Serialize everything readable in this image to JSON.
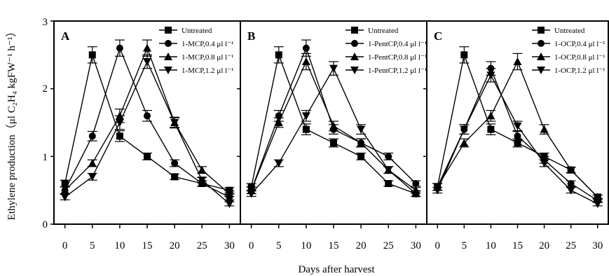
{
  "figure": {
    "ylabel": "Ethylene production（μl C₂H₄ kgFW⁻¹ h⁻¹）",
    "xlabel": "Days after harvest",
    "xticks": [
      "0",
      "5",
      "10",
      "15",
      "20",
      "25",
      "30"
    ],
    "yticks": [
      "0",
      "1",
      "2",
      "3"
    ]
  },
  "chart_data": [
    {
      "type": "line",
      "panel_label": "A",
      "x": [
        0,
        5,
        10,
        15,
        20,
        25,
        30
      ],
      "xlim": [
        -2,
        32
      ],
      "ylim": [
        0,
        3
      ],
      "grid": false,
      "legend_position": "top-right",
      "series": [
        {
          "name": "Untreated",
          "marker": "square",
          "values": [
            0.6,
            2.5,
            1.3,
            1.0,
            0.7,
            0.6,
            0.5
          ],
          "errors": [
            0.05,
            0.12,
            0.08,
            0.05,
            0.04,
            0.04,
            0.04
          ]
        },
        {
          "name": "1-MCP,0.4 μl l⁻¹",
          "marker": "circle",
          "values": [
            0.5,
            1.3,
            2.6,
            1.6,
            0.9,
            0.6,
            0.4
          ],
          "errors": [
            0.05,
            0.07,
            0.12,
            0.08,
            0.05,
            0.04,
            0.04
          ]
        },
        {
          "name": "1-MCP,0.8 μl l⁻¹",
          "marker": "triangle-up",
          "values": [
            0.5,
            0.9,
            1.6,
            2.6,
            1.5,
            0.8,
            0.45
          ],
          "errors": [
            0.05,
            0.05,
            0.1,
            0.12,
            0.08,
            0.05,
            0.04
          ]
        },
        {
          "name": "1-MCP,1.2 μl l⁻¹",
          "marker": "triangle-down",
          "values": [
            0.4,
            0.7,
            1.5,
            2.4,
            1.5,
            0.65,
            0.3
          ],
          "errors": [
            0.04,
            0.05,
            0.1,
            0.1,
            0.07,
            0.04,
            0.03
          ]
        }
      ]
    },
    {
      "type": "line",
      "panel_label": "B",
      "x": [
        0,
        5,
        10,
        15,
        20,
        25,
        30
      ],
      "xlim": [
        -2,
        32
      ],
      "ylim": [
        0,
        3
      ],
      "grid": false,
      "legend_position": "top-right",
      "series": [
        {
          "name": "Untreated",
          "marker": "square",
          "values": [
            0.55,
            2.5,
            1.4,
            1.2,
            1.0,
            0.6,
            0.45
          ],
          "errors": [
            0.05,
            0.12,
            0.08,
            0.06,
            0.05,
            0.04,
            0.04
          ]
        },
        {
          "name": "1-PentCP,0.4 μl l⁻¹",
          "marker": "circle",
          "values": [
            0.5,
            1.6,
            2.6,
            1.4,
            1.2,
            1.0,
            0.6
          ],
          "errors": [
            0.05,
            0.08,
            0.12,
            0.07,
            0.06,
            0.05,
            0.04
          ]
        },
        {
          "name": "1-PentCP,0.8 μl l⁻¹",
          "marker": "triangle-up",
          "values": [
            0.5,
            1.5,
            2.4,
            1.45,
            1.2,
            0.8,
            0.5
          ],
          "errors": [
            0.05,
            0.07,
            0.12,
            0.07,
            0.06,
            0.05,
            0.04
          ]
        },
        {
          "name": "1-PentCP,1.2 μl l⁻¹",
          "marker": "triangle-down",
          "values": [
            0.45,
            0.9,
            1.6,
            2.3,
            1.4,
            0.8,
            0.45
          ],
          "errors": [
            0.04,
            0.05,
            0.08,
            0.1,
            0.07,
            0.05,
            0.04
          ]
        }
      ]
    },
    {
      "type": "line",
      "panel_label": "C",
      "x": [
        0,
        5,
        10,
        15,
        20,
        25,
        30
      ],
      "xlim": [
        -2,
        32
      ],
      "ylim": [
        0,
        3
      ],
      "grid": false,
      "legend_position": "top-right",
      "series": [
        {
          "name": "Untreated",
          "marker": "square",
          "values": [
            0.55,
            2.5,
            1.4,
            1.2,
            1.0,
            0.8,
            0.4
          ],
          "errors": [
            0.05,
            0.12,
            0.08,
            0.06,
            0.05,
            0.04,
            0.03
          ]
        },
        {
          "name": "1-OCP,0.4 μl l⁻¹",
          "marker": "circle",
          "values": [
            0.55,
            1.4,
            2.3,
            1.3,
            0.95,
            0.6,
            0.35
          ],
          "errors": [
            0.05,
            0.07,
            0.1,
            0.07,
            0.05,
            0.04,
            0.03
          ]
        },
        {
          "name": "1-OCP,0.8 μl l⁻¹",
          "marker": "triangle-up",
          "values": [
            0.55,
            1.2,
            1.6,
            2.4,
            1.4,
            0.8,
            0.4
          ],
          "errors": [
            0.05,
            0.06,
            0.08,
            0.12,
            0.07,
            0.04,
            0.03
          ]
        },
        {
          "name": "1-OCP,1.2 μl l⁻¹",
          "marker": "triangle-down",
          "values": [
            0.5,
            1.4,
            2.2,
            1.45,
            0.9,
            0.5,
            0.3
          ],
          "errors": [
            0.04,
            0.07,
            0.1,
            0.07,
            0.05,
            0.04,
            0.03
          ]
        }
      ]
    }
  ]
}
